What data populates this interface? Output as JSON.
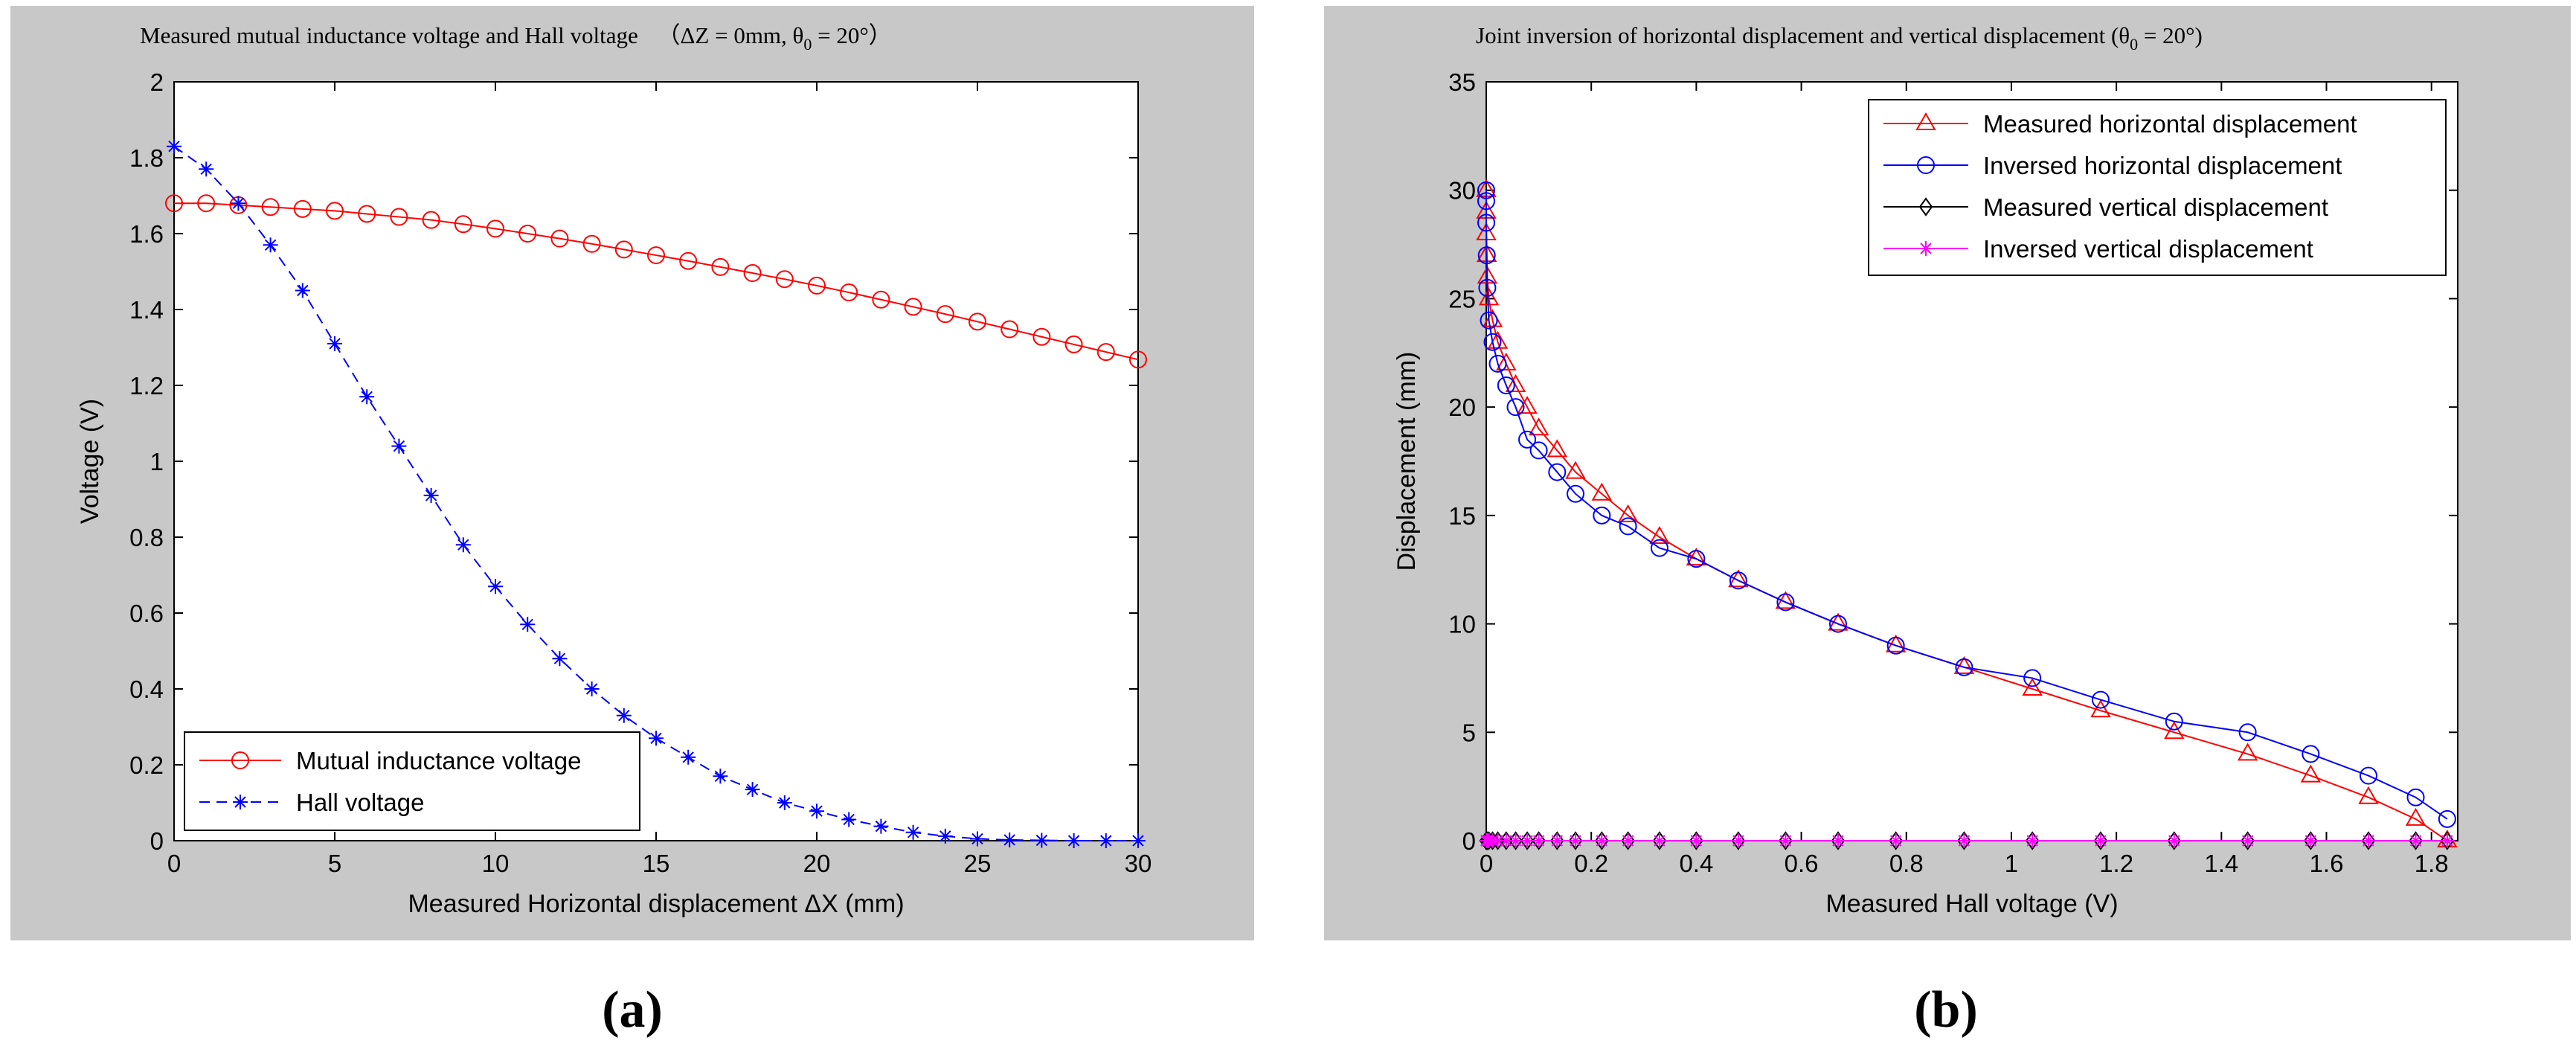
{
  "figure": {
    "panel_a_caption": "(a)",
    "panel_b_caption": "(b)"
  },
  "colors": {
    "figure_bg": "#c8c8c8",
    "axes_bg": "#ffffff",
    "red": "#ff0000",
    "blue": "#0000ff",
    "black": "#000000",
    "magenta": "#ff00ff"
  },
  "chart_data": [
    {
      "type": "line",
      "title_prefix": "Measured mutual inductance voltage and Hall voltage",
      "title_suffix": "（ΔZ = 0mm, θ",
      "title_sub": "0",
      "title_tail": " = 20°）",
      "xlabel": "Measured Horizontal displacement ΔX (mm)",
      "ylabel": "Voltage (V)",
      "xlim": [
        0,
        30
      ],
      "ylim": [
        0,
        2
      ],
      "xticks": [
        0,
        5,
        10,
        15,
        20,
        25,
        30
      ],
      "xtick_labels": [
        "0",
        "5",
        "10",
        "15",
        "20",
        "25",
        "30"
      ],
      "yticks": [
        0,
        0.2,
        0.4,
        0.6,
        0.8,
        1,
        1.2,
        1.4,
        1.6,
        1.8,
        2
      ],
      "ytick_labels": [
        "0",
        "0.2",
        "0.4",
        "0.6",
        "0.8",
        "1",
        "1.2",
        "1.4",
        "1.6",
        "1.8",
        "2"
      ],
      "legend_position": "bottom-left",
      "grid": false,
      "series": [
        {
          "name": "Mutual inductance voltage",
          "color": "#ff0000",
          "marker": "circle",
          "linestyle": "solid",
          "x": [
            0,
            1,
            2,
            3,
            4,
            5,
            6,
            7,
            8,
            9,
            10,
            11,
            12,
            13,
            14,
            15,
            16,
            17,
            18,
            19,
            20,
            21,
            22,
            23,
            24,
            25,
            26,
            27,
            28,
            29,
            30
          ],
          "y": [
            1.68,
            1.68,
            1.675,
            1.67,
            1.665,
            1.66,
            1.652,
            1.644,
            1.636,
            1.625,
            1.613,
            1.6,
            1.587,
            1.573,
            1.558,
            1.543,
            1.528,
            1.512,
            1.496,
            1.48,
            1.463,
            1.445,
            1.426,
            1.407,
            1.388,
            1.368,
            1.348,
            1.328,
            1.308,
            1.288,
            1.268
          ]
        },
        {
          "name": "Hall voltage",
          "color": "#0000ff",
          "marker": "asterisk",
          "linestyle": "dashed",
          "x": [
            0,
            1,
            2,
            3,
            4,
            5,
            6,
            7,
            8,
            9,
            10,
            11,
            12,
            13,
            14,
            15,
            16,
            17,
            18,
            19,
            20,
            21,
            22,
            23,
            24,
            25,
            26,
            27,
            28,
            29,
            30
          ],
          "y": [
            1.83,
            1.77,
            1.68,
            1.57,
            1.45,
            1.31,
            1.17,
            1.04,
            0.91,
            0.78,
            0.67,
            0.57,
            0.48,
            0.4,
            0.33,
            0.27,
            0.22,
            0.17,
            0.135,
            0.1,
            0.078,
            0.056,
            0.038,
            0.022,
            0.012,
            0.005,
            0.002,
            0.001,
            0.0,
            0.0,
            0.0
          ]
        }
      ]
    },
    {
      "type": "line",
      "title_prefix": "Joint inversion of horizontal displacement and vertical displacement (θ",
      "title_sub": "0",
      "title_tail": " = 20°)",
      "xlabel": "Measured Hall voltage (V)",
      "ylabel": "Displacement (mm)",
      "xlim": [
        0,
        1.85
      ],
      "ylim": [
        0,
        35
      ],
      "xticks": [
        0,
        0.2,
        0.4,
        0.6,
        0.8,
        1,
        1.2,
        1.4,
        1.6,
        1.8
      ],
      "xtick_labels": [
        "0",
        "0.2",
        "0.4",
        "0.6",
        "0.8",
        "1",
        "1.2",
        "1.4",
        "1.6",
        "1.8"
      ],
      "yticks": [
        0,
        5,
        10,
        15,
        20,
        25,
        30,
        35
      ],
      "ytick_labels": [
        "0",
        "5",
        "10",
        "15",
        "20",
        "25",
        "30",
        "35"
      ],
      "legend_position": "top-right",
      "grid": false,
      "series": [
        {
          "name": "Measured horizontal displacement",
          "color": "#ff0000",
          "marker": "triangle",
          "linestyle": "solid",
          "x": [
            1.83,
            1.77,
            1.68,
            1.57,
            1.45,
            1.31,
            1.17,
            1.04,
            0.91,
            0.78,
            0.67,
            0.57,
            0.48,
            0.4,
            0.33,
            0.27,
            0.22,
            0.17,
            0.135,
            0.1,
            0.078,
            0.056,
            0.038,
            0.022,
            0.012,
            0.005,
            0.002,
            0.001,
            0.0,
            0.0,
            0.0
          ],
          "y": [
            0,
            1,
            2,
            3,
            4,
            5,
            6,
            7,
            8,
            9,
            10,
            11,
            12,
            13,
            14,
            15,
            16,
            17,
            18,
            19,
            20,
            21,
            22,
            23,
            24,
            25,
            26,
            27,
            28,
            29,
            30
          ]
        },
        {
          "name": "Inversed horizontal displacement",
          "color": "#0000ff",
          "marker": "circle",
          "linestyle": "solid",
          "x": [
            1.83,
            1.77,
            1.68,
            1.57,
            1.45,
            1.31,
            1.17,
            1.04,
            0.91,
            0.78,
            0.67,
            0.57,
            0.48,
            0.4,
            0.33,
            0.27,
            0.22,
            0.17,
            0.135,
            0.1,
            0.078,
            0.056,
            0.038,
            0.022,
            0.012,
            0.005,
            0.002,
            0.001,
            0.0,
            0.0,
            0.0
          ],
          "y": [
            1,
            2,
            3,
            4,
            5,
            5.5,
            6.5,
            7.5,
            8,
            9,
            10,
            11,
            12,
            13,
            13.5,
            14.5,
            15,
            16,
            17,
            18,
            18.5,
            20,
            21,
            22,
            23,
            24,
            25.5,
            27,
            28.5,
            29.5,
            30
          ]
        },
        {
          "name": "Measured vertical displacement",
          "color": "#000000",
          "marker": "diamond",
          "linestyle": "solid",
          "x": [
            1.83,
            1.77,
            1.68,
            1.57,
            1.45,
            1.31,
            1.17,
            1.04,
            0.91,
            0.78,
            0.67,
            0.57,
            0.48,
            0.4,
            0.33,
            0.27,
            0.22,
            0.17,
            0.135,
            0.1,
            0.078,
            0.056,
            0.038,
            0.022,
            0.012,
            0.005,
            0.002,
            0.001,
            0.0,
            0.0,
            0.0
          ],
          "y": [
            0,
            0,
            0,
            0,
            0,
            0,
            0,
            0,
            0,
            0,
            0,
            0,
            0,
            0,
            0,
            0,
            0,
            0,
            0,
            0,
            0,
            0,
            0,
            0,
            0,
            0,
            0,
            0,
            0,
            0,
            0
          ]
        },
        {
          "name": "Inversed vertical displacement",
          "color": "#ff00ff",
          "marker": "asterisk",
          "linestyle": "solid",
          "x": [
            1.83,
            1.77,
            1.68,
            1.57,
            1.45,
            1.31,
            1.17,
            1.04,
            0.91,
            0.78,
            0.67,
            0.57,
            0.48,
            0.4,
            0.33,
            0.27,
            0.22,
            0.17,
            0.135,
            0.1,
            0.078,
            0.056,
            0.038,
            0.022,
            0.012,
            0.005,
            0.002,
            0.001,
            0.0,
            0.0,
            0.0
          ],
          "y": [
            0,
            0,
            0,
            0,
            0,
            0,
            0,
            0,
            0,
            0,
            0,
            0,
            0,
            0,
            0,
            0,
            0,
            0,
            0,
            0,
            0,
            0,
            0,
            0,
            0,
            0,
            0,
            0,
            0,
            0,
            0
          ]
        }
      ]
    }
  ]
}
